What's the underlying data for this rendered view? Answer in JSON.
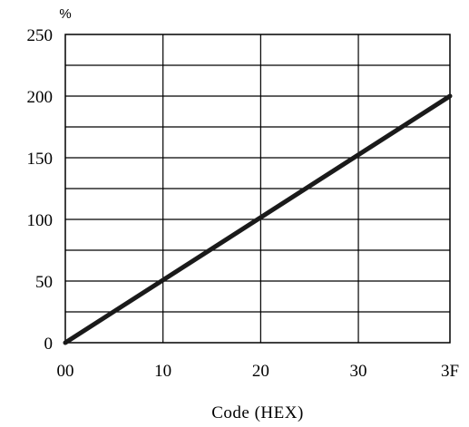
{
  "chart_data": {
    "type": "line",
    "title": "",
    "xlabel": "Code (HEX)",
    "ylabel": "%",
    "xlim": [
      0,
      63
    ],
    "ylim": [
      0,
      250
    ],
    "x_ticks": [
      {
        "value": 0,
        "label": "00"
      },
      {
        "value": 16,
        "label": "10"
      },
      {
        "value": 32,
        "label": "20"
      },
      {
        "value": 48,
        "label": "30"
      },
      {
        "value": 63,
        "label": "3F"
      }
    ],
    "y_ticks": [
      {
        "value": 0,
        "label": "0"
      },
      {
        "value": 50,
        "label": "50"
      },
      {
        "value": 100,
        "label": "100"
      },
      {
        "value": 150,
        "label": "150"
      },
      {
        "value": 200,
        "label": "200"
      },
      {
        "value": 250,
        "label": "250"
      }
    ],
    "y_minor_gridlines": [
      25,
      75,
      125,
      175,
      225
    ],
    "grid": true,
    "series": [
      {
        "x": [
          0,
          63
        ],
        "y": [
          0,
          200
        ],
        "color": "#1a1a1a"
      }
    ]
  }
}
